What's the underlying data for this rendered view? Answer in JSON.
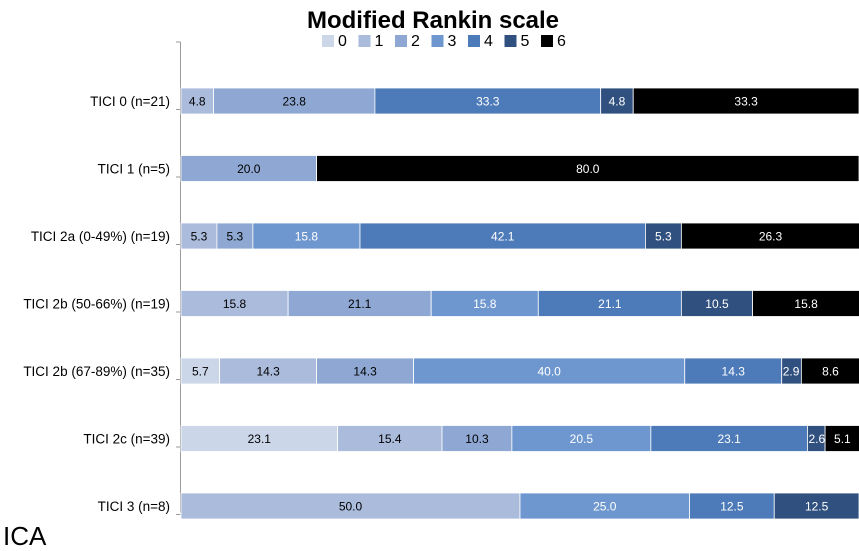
{
  "chart_data": {
    "type": "bar",
    "stacked": true,
    "orientation": "horizontal",
    "title": "Modified Rankin scale",
    "panel_label": "ICA",
    "legend": {
      "position": "top",
      "entries": [
        "0",
        "1",
        "2",
        "3",
        "4",
        "5",
        "6"
      ]
    },
    "xlim": [
      0,
      100
    ],
    "categories": [
      "TICI 0 (n=21)",
      "TICI 1 (n=5)",
      "TICI 2a (0-49%) (n=19)",
      "TICI 2b (50-66%) (n=19)",
      "TICI 2b (67-89%) (n=35)",
      "TICI 2c (n=39)",
      "TICI 3 (n=8)"
    ],
    "series": [
      {
        "name": "0",
        "color": "#cbd6e9",
        "values": [
          0.0,
          0.0,
          0.0,
          0.0,
          5.7,
          23.1,
          0.0
        ],
        "labels": [
          "0.0",
          "0.0",
          "0.0",
          "0.0",
          "5.7",
          "23.1",
          "0.0"
        ]
      },
      {
        "name": "1",
        "color": "#aabbdc",
        "values": [
          4.8,
          0.0,
          5.3,
          15.8,
          14.3,
          15.4,
          50.0
        ],
        "labels": [
          "4.8",
          "",
          "5.3",
          "15.8",
          "14.3",
          "15.4",
          "50.0"
        ]
      },
      {
        "name": "2",
        "color": "#8ea8d3",
        "values": [
          23.8,
          20.0,
          5.3,
          21.1,
          14.3,
          10.3,
          0.0
        ],
        "labels": [
          "23.8",
          "20.0",
          "5.3",
          "21.1",
          "14.3",
          "10.3",
          "0.0"
        ]
      },
      {
        "name": "3",
        "color": "#6e97d0",
        "values": [
          0.0,
          0.0,
          15.8,
          15.8,
          40.0,
          20.5,
          25.0
        ],
        "labels": [
          "0.0",
          "0",
          "15.8",
          "15.8",
          "40.0",
          "20.5",
          "25.0"
        ]
      },
      {
        "name": "4",
        "color": "#4d7ab8",
        "values": [
          33.3,
          0.0,
          42.1,
          21.1,
          14.3,
          23.1,
          12.5
        ],
        "labels": [
          "33.3",
          "0",
          "42.1",
          "21.1",
          "14.3",
          "23.1",
          "12.5"
        ]
      },
      {
        "name": "5",
        "color": "#30507f",
        "values": [
          4.8,
          0.0,
          5.3,
          10.5,
          2.9,
          2.6,
          12.5
        ],
        "labels": [
          "4.8",
          "",
          "5.3",
          "10.5",
          "2.9",
          "2.6",
          "12.5"
        ]
      },
      {
        "name": "6",
        "color": "#000000",
        "values": [
          33.3,
          80.0,
          26.3,
          15.8,
          8.6,
          5.1,
          0.0
        ],
        "labels": [
          "33.3",
          "80.0",
          "26.3",
          "15.8",
          "8.6",
          "5.1",
          "0"
        ]
      }
    ]
  }
}
